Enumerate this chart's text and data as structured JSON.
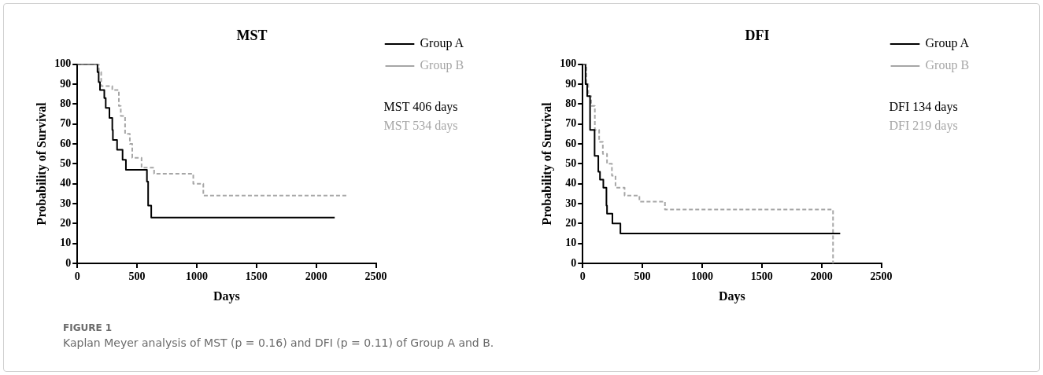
{
  "chart_data": [
    {
      "type": "step",
      "title": "MST",
      "xlabel": "Days",
      "ylabel": "Probability of Survival",
      "xlim": [
        0,
        2500
      ],
      "xticks": [
        0,
        500,
        1000,
        1500,
        2000,
        2500
      ],
      "ylim": [
        0,
        100
      ],
      "yticks": [
        0,
        10,
        20,
        30,
        40,
        50,
        60,
        70,
        80,
        90,
        100
      ],
      "grid": false,
      "legend": "right",
      "marker": "none",
      "series": [
        {
          "name": "Group A",
          "color": "#000000",
          "line_style": "solid",
          "x": [
            0,
            169,
            179,
            190,
            226,
            238,
            269,
            293,
            298,
            333,
            379,
            407,
            583,
            593,
            619,
            2155
          ],
          "values": [
            100,
            96,
            91,
            87,
            83,
            78,
            73,
            67,
            62,
            57,
            52,
            47,
            41,
            29,
            23,
            23
          ]
        },
        {
          "name": "Group B",
          "color": "#a6a6a6",
          "line_style": "dashed",
          "x": [
            0,
            181,
            200,
            293,
            348,
            364,
            400,
            440,
            460,
            538,
            643,
            971,
            1055,
            2257
          ],
          "values": [
            100,
            96,
            89,
            87,
            79,
            74,
            65,
            60,
            53,
            48,
            45,
            40,
            34,
            34
          ]
        }
      ],
      "annotations": [
        "MST 406 days",
        "MST 534 days",
        "FIGURE 1",
        "Kaplan Meyer analysis of MST (p = 0.16) and DFI (p = 0.11) of Group A and B."
      ]
    },
    {
      "type": "step",
      "title": "DFI",
      "xlabel": "Days",
      "ylabel": "Probability of Survival",
      "xlim": [
        0,
        2500
      ],
      "xticks": [
        0,
        500,
        1000,
        1500,
        2000,
        2500
      ],
      "ylim": [
        0,
        100
      ],
      "yticks": [
        0,
        10,
        20,
        30,
        40,
        50,
        60,
        70,
        80,
        90,
        100
      ],
      "grid": false,
      "legend": "right",
      "marker": "none",
      "series": [
        {
          "name": "Group A",
          "color": "#000000",
          "line_style": "solid",
          "x": [
            0,
            24,
            38,
            62,
            100,
            131,
            145,
            173,
            199,
            204,
            249,
            316,
            2156
          ],
          "values": [
            100,
            90,
            84,
            67,
            54,
            46,
            42,
            38,
            29,
            25,
            20,
            15,
            15
          ]
        },
        {
          "name": "Group B",
          "color": "#a6a6a6",
          "line_style": "dashed",
          "x": [
            0,
            31,
            47,
            71,
            102,
            138,
            169,
            204,
            245,
            275,
            351,
            475,
            689,
            2096,
            2096
          ],
          "values": [
            100,
            90,
            84,
            79,
            67,
            61,
            55,
            50,
            44,
            38,
            34,
            31,
            27,
            24,
            0
          ]
        }
      ],
      "annotations": [
        "DFI 134 days",
        "DFI 219 days"
      ]
    }
  ]
}
